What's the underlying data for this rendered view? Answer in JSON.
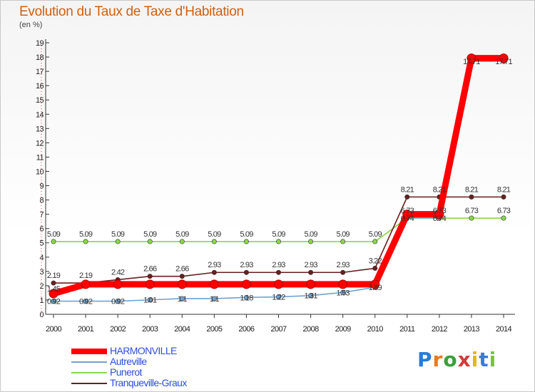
{
  "title": "Evolution du Taux de Taxe d'Habitation",
  "subtitle": "(en %)",
  "logo": {
    "text": "Proxiti"
  },
  "colors": {
    "title": "#d06010",
    "harmonville": "#ff0000",
    "autreville": "#6fa3d2",
    "punerot": "#88d845",
    "tranqueville": "#6b1e1e",
    "axis": "#333333",
    "grid_dots": "#c04040"
  },
  "chart_data": {
    "type": "line",
    "title": "Evolution du Taux de Taxe d'Habitation",
    "ylabel": "(en %)",
    "xlabel": "",
    "ylim": [
      0,
      19
    ],
    "yticks": [
      "0",
      "1",
      "2",
      "3",
      "4",
      "5",
      "6",
      "7",
      "8",
      "9",
      "10",
      "11",
      "12",
      "13",
      "14",
      "15",
      "16",
      "17",
      "18",
      "19"
    ],
    "categories": [
      "2000",
      "2001",
      "2002",
      "2003",
      "2004",
      "2005",
      "2006",
      "2007",
      "2008",
      "2009",
      "2010",
      "2011",
      "2012",
      "2013",
      "2014"
    ],
    "series": [
      {
        "name": "HARMONVILLE",
        "key": "harmonville",
        "values": [
          1.45,
          2.1,
          2.1,
          2.1,
          2.1,
          2.1,
          2.1,
          2.1,
          2.1,
          2.1,
          2.1,
          7.0,
          7.0,
          17.92,
          17.92
        ],
        "labels": [
          "1.45",
          "",
          "",
          "",
          "",
          "",
          "",
          "",
          "",
          "",
          "",
          "",
          "",
          "",
          ""
        ]
      },
      {
        "name": "Autreville",
        "key": "autreville",
        "values": [
          0.92,
          0.92,
          0.92,
          1.01,
          1.1,
          1.1,
          1.18,
          1.22,
          1.31,
          1.53,
          1.89,
          6.74,
          6.74,
          17.71,
          17.71
        ],
        "labels": [
          "0.92",
          "0.92",
          "0.92",
          "1.01",
          "1.1",
          "1.1",
          "1.18",
          "1.22",
          "1.31",
          "1.53",
          "1.89",
          "6.74",
          "6.74",
          "17.71",
          "17.71"
        ]
      },
      {
        "name": "Punerot",
        "key": "punerot",
        "values": [
          5.09,
          5.09,
          5.09,
          5.09,
          5.09,
          5.09,
          5.09,
          5.09,
          5.09,
          5.09,
          5.09,
          6.73,
          6.73,
          6.73,
          6.73
        ],
        "labels": [
          "5.09",
          "5.09",
          "5.09",
          "5.09",
          "5.09",
          "5.09",
          "5.09",
          "5.09",
          "5.09",
          "5.09",
          "5.09",
          "6.73",
          "6.73",
          "6.73",
          "6.73"
        ]
      },
      {
        "name": "Tranqueville-Graux",
        "key": "tranqueville",
        "values": [
          2.19,
          2.19,
          2.42,
          2.66,
          2.66,
          2.93,
          2.93,
          2.93,
          2.93,
          2.93,
          3.22,
          8.21,
          8.21,
          8.21,
          8.21
        ],
        "labels": [
          "2.19",
          "2.19",
          "2.42",
          "2.66",
          "2.66",
          "2.93",
          "2.93",
          "2.93",
          "2.93",
          "2.93",
          "3.22",
          "8.21",
          "8.21",
          "8.21",
          "8.21"
        ]
      }
    ],
    "legend_position": "bottom-left"
  }
}
